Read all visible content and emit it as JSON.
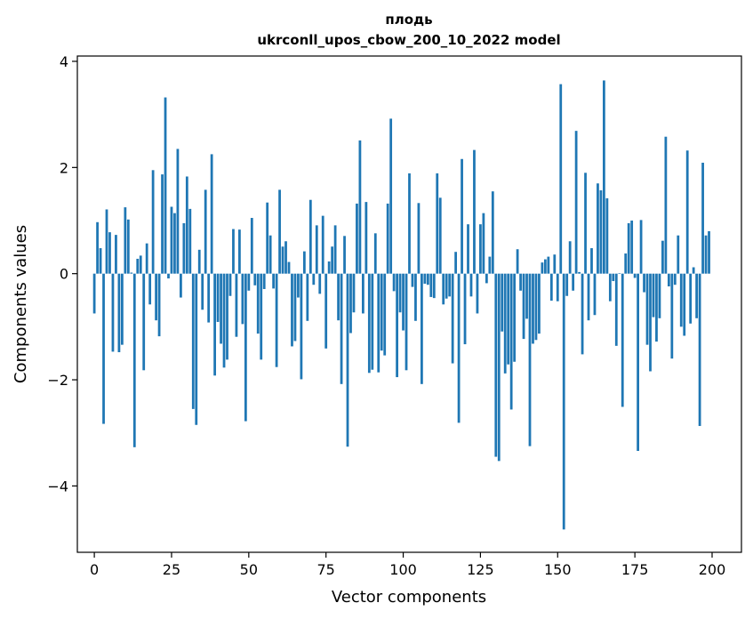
{
  "chart_data": {
    "type": "bar",
    "title": "плодь",
    "subtitle": "ukrconll_upos_cbow_200_10_2022 model",
    "xlabel": "Vector components",
    "ylabel": "Components values",
    "xlim": [
      -5.5,
      209.5
    ],
    "ylim": [
      -5.25,
      4.1
    ],
    "xticks": [
      0,
      25,
      50,
      75,
      100,
      125,
      150,
      175,
      200
    ],
    "yticks": [
      -4,
      -2,
      0,
      2,
      4
    ],
    "ytick_labels": [
      "−4",
      "−2",
      "0",
      "2",
      "4"
    ],
    "grid": false,
    "bar_color": "#1f77b4",
    "values": [
      -0.75,
      0.97,
      0.48,
      -2.83,
      1.21,
      0.78,
      -1.47,
      0.73,
      -1.48,
      -1.34,
      1.25,
      1.02,
      0.02,
      -3.27,
      0.28,
      0.34,
      -1.82,
      0.57,
      -0.58,
      1.95,
      -0.88,
      -1.18,
      1.87,
      3.32,
      -0.09,
      1.26,
      1.14,
      2.35,
      -0.45,
      0.95,
      1.83,
      1.22,
      -2.55,
      -2.85,
      0.45,
      -0.68,
      1.58,
      -0.92,
      2.25,
      -1.92,
      -0.91,
      -1.32,
      -1.77,
      -1.62,
      -0.42,
      0.84,
      -1.19,
      0.83,
      -0.95,
      -2.78,
      -0.32,
      1.05,
      -0.22,
      -1.13,
      -1.62,
      -0.29,
      1.34,
      0.72,
      -0.28,
      -1.76,
      1.58,
      0.51,
      0.61,
      0.22,
      -1.37,
      -1.27,
      -0.45,
      -1.99,
      0.42,
      -0.89,
      1.39,
      -0.21,
      0.91,
      -0.38,
      1.09,
      -1.41,
      0.23,
      0.51,
      0.91,
      -0.88,
      -2.08,
      0.71,
      -3.26,
      -1.12,
      -0.73,
      1.32,
      2.51,
      -0.75,
      1.35,
      -1.87,
      -1.81,
      0.76,
      -1.86,
      -1.45,
      -1.54,
      1.32,
      2.92,
      -0.33,
      -1.95,
      -0.73,
      -1.07,
      -1.82,
      1.89,
      -0.25,
      -0.89,
      1.33,
      -2.08,
      -0.19,
      -0.21,
      -0.44,
      -0.46,
      1.89,
      1.43,
      -0.58,
      -0.47,
      -0.43,
      -1.69,
      0.41,
      -2.81,
      2.16,
      -1.33,
      0.93,
      -0.43,
      2.33,
      -0.75,
      0.93,
      1.14,
      -0.18,
      0.32,
      1.55,
      -3.45,
      -3.53,
      -1.09,
      -1.88,
      -1.71,
      -2.56,
      -1.66,
      0.46,
      -0.32,
      -1.23,
      -0.85,
      -3.25,
      -1.32,
      -1.25,
      -1.13,
      0.21,
      0.27,
      0.32,
      -0.51,
      0.36,
      -0.52,
      3.57,
      -4.82,
      -0.42,
      0.61,
      -0.32,
      2.69,
      0.03,
      -1.52,
      1.9,
      -0.88,
      0.48,
      -0.78,
      1.7,
      1.57,
      3.64,
      1.42,
      -0.52,
      -0.14,
      -1.36,
      0.01,
      -2.51,
      0.38,
      0.95,
      1.0,
      -0.08,
      -3.34,
      1.01,
      -0.35,
      -1.34,
      -1.84,
      -0.82,
      -1.28,
      -0.84,
      0.62,
      2.58,
      -0.24,
      -1.6,
      -0.21,
      0.72,
      -1.0,
      -1.17,
      2.32,
      -0.94,
      0.12,
      -0.84,
      -2.87,
      2.09,
      0.72,
      0.8
    ]
  }
}
